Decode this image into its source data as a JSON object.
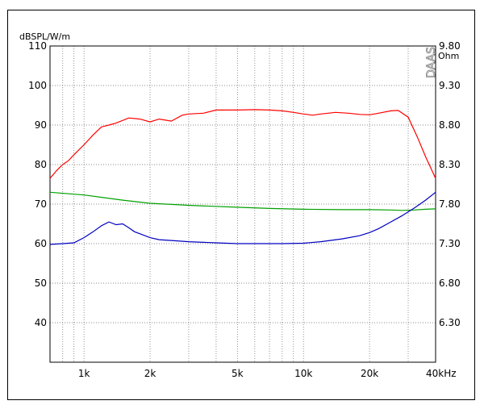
{
  "chart_data": {
    "type": "line",
    "title": "",
    "ylabel": "dBSPL/W/m",
    "y2label": "Ohm",
    "xlabel_unit": "kHz",
    "watermark": "DAAS",
    "x_scale": "log",
    "xlim": [
      700,
      40000
    ],
    "ylim": [
      30,
      110
    ],
    "y2lim": [
      6.0,
      9.8
    ],
    "y_ticks": [
      40,
      50,
      60,
      70,
      80,
      90,
      100,
      110
    ],
    "y2_ticks": [
      "6.30",
      "6.80",
      "7.30",
      "7.80",
      "8.30",
      "8.80",
      "9.30",
      "9.80"
    ],
    "x_tick_labels": [
      {
        "x": 1000,
        "label": "1k"
      },
      {
        "x": 2000,
        "label": "2k"
      },
      {
        "x": 5000,
        "label": "5k"
      },
      {
        "x": 10000,
        "label": "10k"
      },
      {
        "x": 20000,
        "label": "20k"
      },
      {
        "x": 40000,
        "label": "40kHz"
      }
    ],
    "grid": true,
    "series": [
      {
        "axis": "left",
        "color": "#ff0000",
        "x": [
          700,
          750,
          800,
          850,
          900,
          1000,
          1100,
          1200,
          1300,
          1400,
          1600,
          1800,
          2000,
          2200,
          2500,
          2800,
          3000,
          3500,
          4000,
          5000,
          6000,
          7000,
          8000,
          9000,
          10000,
          11000,
          12000,
          14000,
          16000,
          18000,
          20000,
          22000,
          25000,
          27000,
          30000,
          33000,
          36000,
          40000
        ],
        "y": [
          76.5,
          78.5,
          80,
          81,
          82.5,
          85,
          87.5,
          89.5,
          90,
          90.5,
          91.8,
          91.5,
          90.8,
          91.5,
          91,
          92.5,
          92.8,
          93,
          93.8,
          93.8,
          93.9,
          93.8,
          93.6,
          93.2,
          92.8,
          92.5,
          92.8,
          93.2,
          93,
          92.7,
          92.6,
          93,
          93.6,
          93.7,
          92,
          87,
          82,
          76.5
        ]
      },
      {
        "axis": "left",
        "color": "#00a000",
        "x": [
          700,
          1000,
          1500,
          2000,
          3000,
          5000,
          7000,
          10000,
          15000,
          20000,
          25000,
          28000,
          32000,
          36000,
          40000
        ],
        "y": [
          73,
          72.3,
          71,
          70.2,
          69.7,
          69.2,
          68.9,
          68.7,
          68.6,
          68.6,
          68.5,
          68.4,
          68.5,
          68.7,
          68.8
        ]
      },
      {
        "axis": "left",
        "color": "#0000c0",
        "x": [
          700,
          800,
          900,
          1000,
          1100,
          1200,
          1300,
          1400,
          1500,
          1600,
          1700,
          1800,
          2000,
          2200,
          2500,
          3000,
          4000,
          5000,
          6000,
          7000,
          8000,
          10000,
          12000,
          15000,
          18000,
          20000,
          22000,
          25000,
          28000,
          32000,
          36000,
          40000
        ],
        "y": [
          59.8,
          60,
          60.2,
          61.5,
          63,
          64.5,
          65.5,
          64.8,
          65,
          64,
          63,
          62.5,
          61.5,
          61,
          60.8,
          60.5,
          60.2,
          60,
          60,
          60,
          60,
          60.1,
          60.5,
          61.2,
          62,
          62.8,
          63.8,
          65.5,
          67,
          69,
          71,
          73
        ]
      }
    ]
  }
}
